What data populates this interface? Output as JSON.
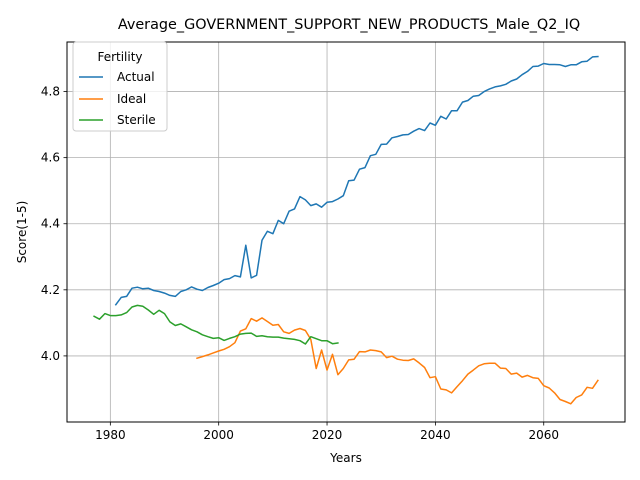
{
  "chart_data": {
    "type": "line",
    "title": "Average_GOVERNMENT_SUPPORT_NEW_PRODUCTS_Male_Q2_IQ",
    "xlabel": "Years",
    "ylabel": "Score(1-5)",
    "xlim": [
      1972,
      2075
    ],
    "ylim": [
      3.8,
      4.95
    ],
    "xticks": [
      1980,
      2000,
      2020,
      2040,
      2060
    ],
    "yticks": [
      4.0,
      4.2,
      4.4,
      4.6,
      4.8
    ],
    "ytick_labels": [
      "4.0",
      "4.2",
      "4.4",
      "4.6",
      "4.8"
    ],
    "grid": true,
    "legend": {
      "title": "Fertility",
      "placement": "top-left"
    },
    "series": [
      {
        "name": "Actual",
        "color": "#1f77b4",
        "x": [
          1981,
          1982,
          1983,
          1984,
          1985,
          1986,
          1987,
          1988,
          1989,
          1990,
          1991,
          1992,
          1993,
          1994,
          1995,
          1996,
          1997,
          1998,
          1999,
          2000,
          2001,
          2002,
          2003,
          2004,
          2005,
          2006,
          2007,
          2008,
          2009,
          2010,
          2011,
          2012,
          2013,
          2014,
          2015,
          2016,
          2017,
          2018,
          2019,
          2020,
          2021,
          2022,
          2023,
          2024,
          2025,
          2026,
          2027,
          2028,
          2029,
          2030,
          2031,
          2032,
          2033,
          2034,
          2035,
          2036,
          2037,
          2038,
          2039,
          2040,
          2041,
          2042,
          2043,
          2044,
          2045,
          2046,
          2047,
          2048,
          2049,
          2050,
          2051,
          2052,
          2053,
          2054,
          2055,
          2056,
          2057,
          2058,
          2059,
          2060,
          2061,
          2062,
          2063,
          2064,
          2065,
          2066,
          2067,
          2068,
          2069,
          2070
        ],
        "y": [
          4.155,
          4.177,
          4.18,
          4.205,
          4.208,
          4.203,
          4.205,
          4.198,
          4.195,
          4.19,
          4.183,
          4.18,
          4.195,
          4.2,
          4.209,
          4.202,
          4.198,
          4.207,
          4.213,
          4.22,
          4.231,
          4.234,
          4.243,
          4.239,
          4.335,
          4.236,
          4.244,
          4.35,
          4.377,
          4.37,
          4.41,
          4.4,
          4.438,
          4.445,
          4.482,
          4.472,
          4.455,
          4.46,
          4.45,
          4.465,
          4.467,
          4.475,
          4.485,
          4.53,
          4.532,
          4.565,
          4.57,
          4.606,
          4.61,
          4.64,
          4.641,
          4.66,
          4.664,
          4.669,
          4.67,
          4.68,
          4.688,
          4.682,
          4.705,
          4.698,
          4.725,
          4.717,
          4.742,
          4.742,
          4.768,
          4.773,
          4.786,
          4.788,
          4.8,
          4.808,
          4.814,
          4.817,
          4.822,
          4.832,
          4.838,
          4.851,
          4.861,
          4.876,
          4.877,
          4.885,
          4.882,
          4.882,
          4.881,
          4.876,
          4.881,
          4.881,
          4.89,
          4.892,
          4.905,
          4.906
        ]
      },
      {
        "name": "Ideal",
        "color": "#ff7f0e",
        "x": [
          1996,
          1997,
          1998,
          1999,
          2000,
          2001,
          2002,
          2003,
          2004,
          2005,
          2006,
          2007,
          2008,
          2009,
          2010,
          2011,
          2012,
          2013,
          2014,
          2015,
          2016,
          2017,
          2018,
          2019,
          2020,
          2021,
          2022,
          2023,
          2024,
          2025,
          2026,
          2027,
          2028,
          2029,
          2030,
          2031,
          2032,
          2033,
          2034,
          2035,
          2036,
          2037,
          2038,
          2039,
          2040,
          2041,
          2042,
          2043,
          2044,
          2045,
          2046,
          2047,
          2048,
          2049,
          2050,
          2051,
          2052,
          2053,
          2054,
          2055,
          2056,
          2057,
          2058,
          2059,
          2060,
          2061,
          2062,
          2063,
          2064,
          2065,
          2066,
          2067,
          2068,
          2069,
          2070
        ],
        "y": [
          3.993,
          3.998,
          4.003,
          4.009,
          4.015,
          4.02,
          4.028,
          4.04,
          4.075,
          4.082,
          4.113,
          4.105,
          4.115,
          4.104,
          4.093,
          4.095,
          4.073,
          4.068,
          4.078,
          4.083,
          4.077,
          4.05,
          3.962,
          4.018,
          3.957,
          4.005,
          3.943,
          3.962,
          3.988,
          3.99,
          4.013,
          4.012,
          4.018,
          4.016,
          4.012,
          3.995,
          3.999,
          3.99,
          3.987,
          3.986,
          3.991,
          3.979,
          3.965,
          3.934,
          3.937,
          3.9,
          3.897,
          3.888,
          3.907,
          3.925,
          3.945,
          3.957,
          3.97,
          3.976,
          3.978,
          3.978,
          3.963,
          3.962,
          3.945,
          3.948,
          3.936,
          3.941,
          3.934,
          3.932,
          3.91,
          3.903,
          3.888,
          3.868,
          3.862,
          3.855,
          3.874,
          3.882,
          3.905,
          3.902,
          3.926
        ]
      },
      {
        "name": "Sterile",
        "color": "#2ca02c",
        "x": [
          1977,
          1978,
          1979,
          1980,
          1981,
          1982,
          1983,
          1984,
          1985,
          1986,
          1987,
          1988,
          1989,
          1990,
          1991,
          1992,
          1993,
          1994,
          1995,
          1996,
          1997,
          1998,
          1999,
          2000,
          2001,
          2002,
          2003,
          2004,
          2005,
          2006,
          2007,
          2008,
          2009,
          2010,
          2011,
          2012,
          2013,
          2014,
          2015,
          2016,
          2017,
          2018,
          2019,
          2020,
          2021,
          2022
        ],
        "y": [
          4.12,
          4.111,
          4.128,
          4.122,
          4.122,
          4.124,
          4.131,
          4.148,
          4.153,
          4.15,
          4.139,
          4.126,
          4.138,
          4.128,
          4.103,
          4.092,
          4.097,
          4.088,
          4.079,
          4.073,
          4.064,
          4.058,
          4.053,
          4.055,
          4.047,
          4.053,
          4.058,
          4.066,
          4.068,
          4.069,
          4.059,
          4.061,
          4.058,
          4.057,
          4.057,
          4.054,
          4.052,
          4.05,
          4.046,
          4.036,
          4.058,
          4.052,
          4.046,
          4.046,
          4.037,
          4.039
        ]
      }
    ]
  }
}
